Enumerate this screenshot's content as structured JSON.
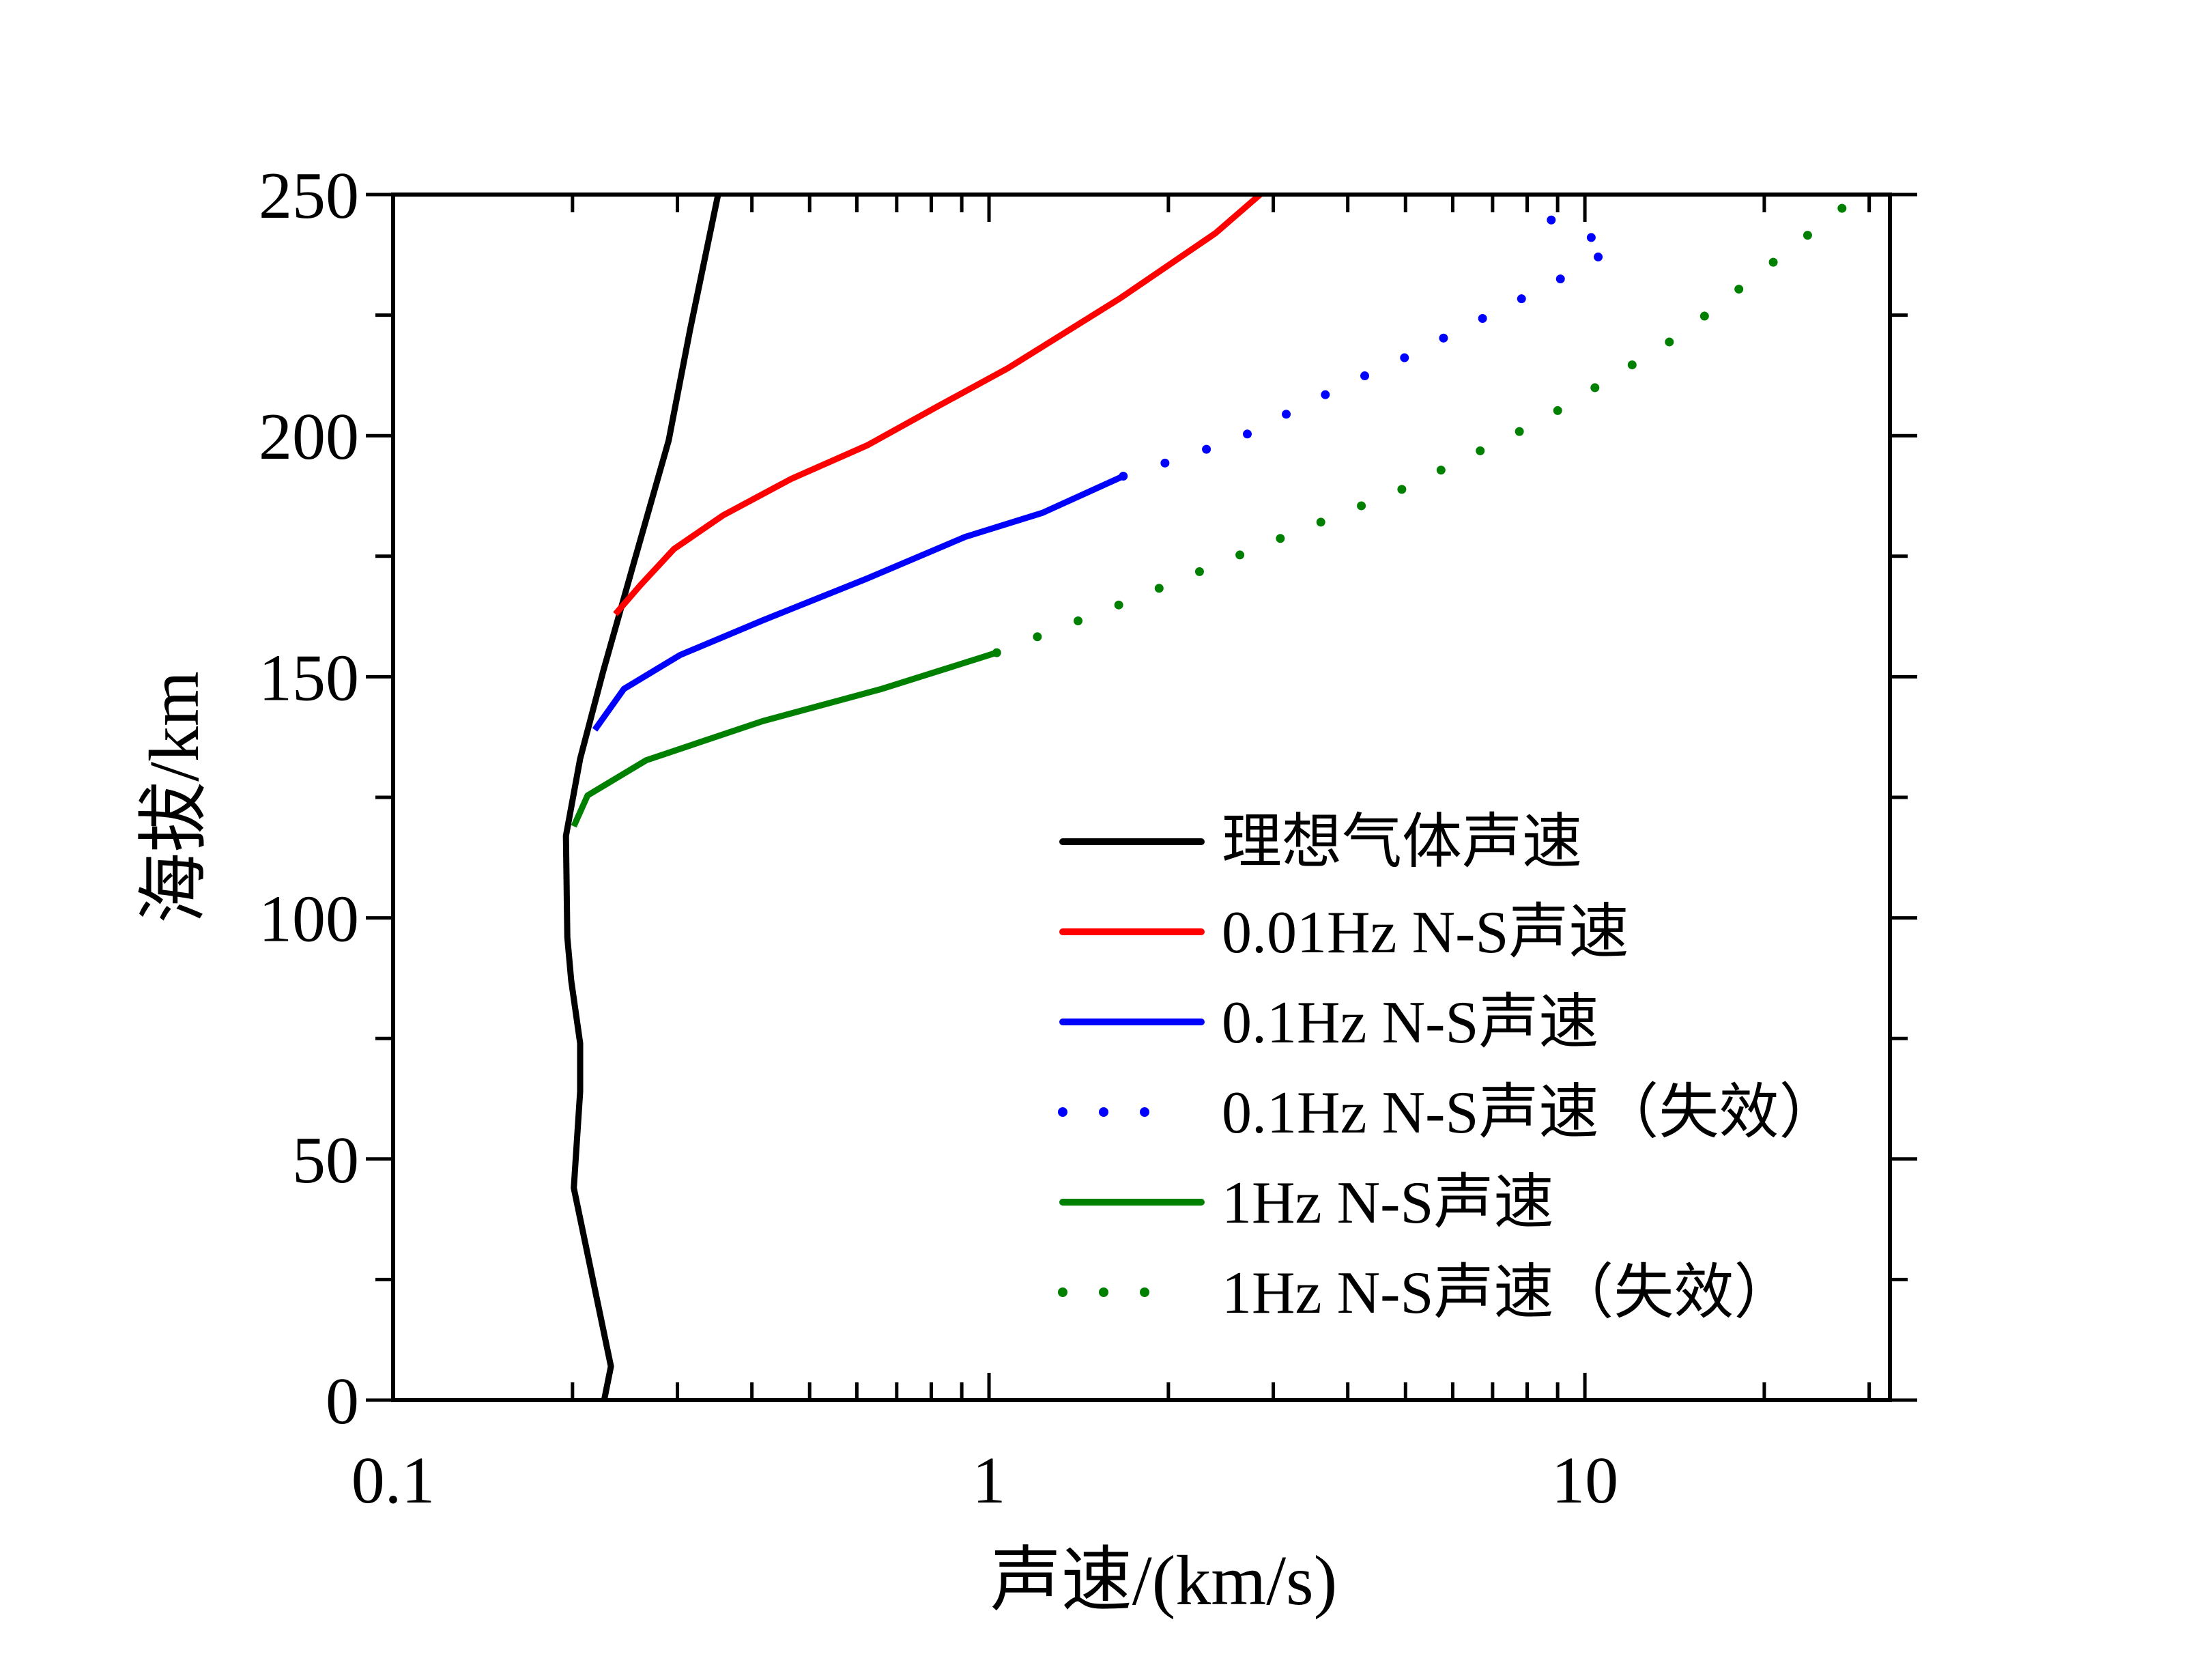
{
  "chart_data": {
    "type": "line",
    "title": "",
    "xlabel": "声速/(km/s)",
    "ylabel": "海拔/km",
    "xscale": "log",
    "xlim": [
      0.1,
      32.5
    ],
    "ylim": [
      0,
      250
    ],
    "xticks": [
      {
        "value": 0.1,
        "label": "0.1"
      },
      {
        "value": 1,
        "label": "1"
      },
      {
        "value": 10,
        "label": "10"
      }
    ],
    "yticks": [
      {
        "value": 0,
        "label": "0"
      },
      {
        "value": 50,
        "label": "50"
      },
      {
        "value": 100,
        "label": "100"
      },
      {
        "value": 150,
        "label": "150"
      },
      {
        "value": 200,
        "label": "200"
      },
      {
        "value": 250,
        "label": "250"
      }
    ],
    "grid": false,
    "legend_position": "bottom-right",
    "series": [
      {
        "name": "理想气体声速",
        "color": "#000000",
        "style": "solid",
        "points": [
          [
            0.226,
            0
          ],
          [
            0.232,
            7
          ],
          [
            0.201,
            44
          ],
          [
            0.206,
            64
          ],
          [
            0.206,
            74
          ],
          [
            0.199,
            87
          ],
          [
            0.196,
            96
          ],
          [
            0.195,
            117
          ],
          [
            0.206,
            133
          ],
          [
            0.225,
            151
          ],
          [
            0.254,
            174
          ],
          [
            0.29,
            199
          ],
          [
            0.315,
            222
          ],
          [
            0.351,
            250
          ]
        ]
      },
      {
        "name": "0.01Hz N-S声速",
        "color": "#ff0000",
        "style": "solid",
        "points": [
          [
            0.236,
            163
          ],
          [
            0.26,
            169
          ],
          [
            0.296,
            176.5
          ],
          [
            0.358,
            183.5
          ],
          [
            0.465,
            191
          ],
          [
            0.625,
            198
          ],
          [
            0.818,
            206
          ],
          [
            1.076,
            214
          ],
          [
            1.66,
            228.5
          ],
          [
            2.4,
            242
          ],
          [
            2.85,
            250
          ]
        ]
      },
      {
        "name": "0.1Hz N-S声速",
        "color": "#0000ff",
        "style": "solid",
        "points": [
          [
            0.218,
            139
          ],
          [
            0.244,
            147.5
          ],
          [
            0.303,
            154.5
          ],
          [
            0.417,
            161.7
          ],
          [
            0.625,
            170.4
          ],
          [
            0.912,
            179
          ],
          [
            1.23,
            184
          ],
          [
            1.68,
            191.6
          ]
        ]
      },
      {
        "name": "0.1Hz N-S声速（失效）",
        "color": "#0000ff",
        "style": "dotted",
        "points": [
          [
            1.68,
            191.6
          ],
          [
            2.18,
            196
          ],
          [
            2.68,
            200
          ],
          [
            3.29,
            205.6
          ],
          [
            4.03,
            211
          ],
          [
            4.95,
            216
          ],
          [
            6.07,
            221.5
          ],
          [
            7.44,
            227
          ],
          [
            9.13,
            232.6
          ],
          [
            11.2,
            239
          ],
          [
            8.32,
            246
          ]
        ]
      },
      {
        "name": "1Hz N-S声速",
        "color": "#008000",
        "style": "solid",
        "points": [
          [
            0.201,
            119
          ],
          [
            0.212,
            125.4
          ],
          [
            0.266,
            132.7
          ],
          [
            0.417,
            140.8
          ],
          [
            0.661,
            147.5
          ],
          [
            1.03,
            155
          ]
        ]
      },
      {
        "name": "1Hz N-S声速（失效）",
        "color": "#008000",
        "style": "dotted",
        "points": [
          [
            1.03,
            155
          ],
          [
            1.66,
            165
          ],
          [
            2.85,
            177
          ],
          [
            4.9,
            188.7
          ],
          [
            8.42,
            203
          ],
          [
            14.4,
            220.7
          ],
          [
            28.9,
            250
          ]
        ]
      }
    ]
  }
}
